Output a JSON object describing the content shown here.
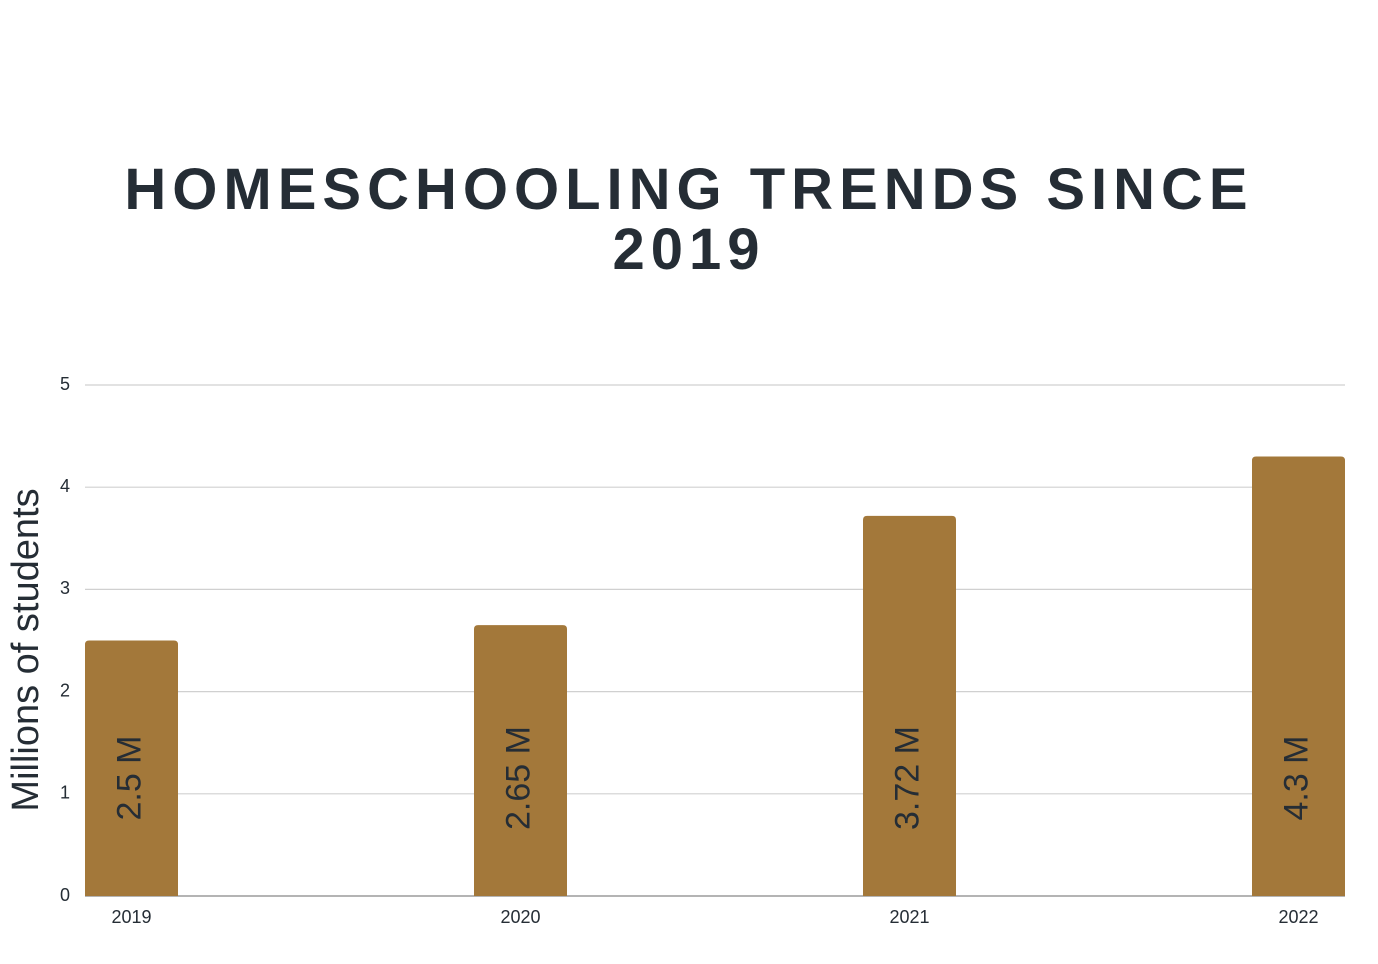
{
  "chart_data": {
    "type": "bar",
    "title": "HOMESCHOOLING TRENDS SINCE 2019",
    "y_label": "Millions of students",
    "categories": [
      "2019",
      "2020",
      "2021",
      "2022"
    ],
    "values": [
      2.5,
      2.65,
      3.72,
      4.3
    ],
    "value_labels": [
      "2.5 M",
      "2.65 M",
      "3.72 M",
      "4.3 M"
    ],
    "color": "#a3783a",
    "ylim": [
      0,
      5
    ],
    "yticks": [
      0,
      1,
      2,
      3,
      4,
      5
    ],
    "grid": true
  }
}
